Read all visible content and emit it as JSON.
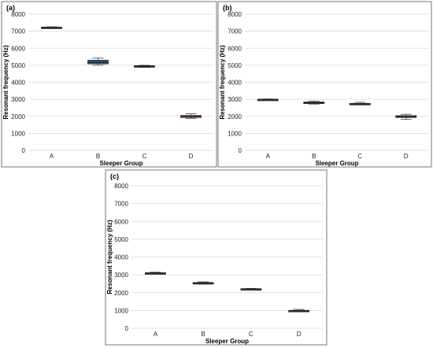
{
  "chart_data": [
    {
      "type": "box",
      "panel_label": "(a)",
      "xlabel": "Sleeper Group",
      "ylabel": "Resonant frequency (Hz)",
      "ylim": [
        0,
        8000
      ],
      "yticks": [
        "0",
        "1000",
        "2000",
        "3000",
        "4000",
        "5000",
        "6000",
        "7000",
        "8000"
      ],
      "grid": true,
      "categories": [
        "A",
        "B",
        "C",
        "D"
      ],
      "boxes": [
        {
          "category": "A",
          "min": 7170,
          "q1": 7190,
          "median": 7215,
          "q3": 7240,
          "max": 7260,
          "color": "#4a4a4a"
        },
        {
          "category": "B",
          "min": 5000,
          "q1": 5080,
          "median": 5180,
          "q3": 5300,
          "max": 5420,
          "color": "#2f5f87"
        },
        {
          "category": "C",
          "min": 4870,
          "q1": 4900,
          "median": 4940,
          "q3": 4975,
          "max": 5000,
          "color": "#4a4a4a"
        },
        {
          "category": "D",
          "min": 1880,
          "q1": 1930,
          "median": 2000,
          "q3": 2050,
          "max": 2150,
          "color": "#9b4a48"
        }
      ]
    },
    {
      "type": "box",
      "panel_label": "(b)",
      "xlabel": "Sleeper Group",
      "ylabel": "Resonant frequency (Hz)",
      "ylim": [
        0,
        8000
      ],
      "yticks": [
        "0",
        "1000",
        "2000",
        "3000",
        "4000",
        "5000",
        "6000",
        "7000",
        "8000"
      ],
      "grid": true,
      "categories": [
        "A",
        "B",
        "C",
        "D"
      ],
      "boxes": [
        {
          "category": "A",
          "min": 2960,
          "q1": 2975,
          "median": 2990,
          "q3": 3005,
          "max": 3020,
          "color": "#4a4a4a"
        },
        {
          "category": "B",
          "min": 2720,
          "q1": 2760,
          "median": 2800,
          "q3": 2840,
          "max": 2900,
          "color": "#4a4a4a"
        },
        {
          "category": "C",
          "min": 2680,
          "q1": 2700,
          "median": 2730,
          "q3": 2760,
          "max": 2820,
          "color": "#4a4a4a"
        },
        {
          "category": "D",
          "min": 1820,
          "q1": 1930,
          "median": 1990,
          "q3": 2040,
          "max": 2120,
          "color": "#4a4a4a"
        }
      ]
    },
    {
      "type": "box",
      "panel_label": "(c)",
      "xlabel": "Sleeper Group",
      "ylabel": "Resonant frequency (Hz)",
      "ylim": [
        0,
        8000
      ],
      "yticks": [
        "0",
        "1000",
        "2000",
        "3000",
        "4000",
        "5000",
        "6000",
        "7000",
        "8000"
      ],
      "grid": true,
      "categories": [
        "A",
        "B",
        "C",
        "D"
      ],
      "boxes": [
        {
          "category": "A",
          "min": 3040,
          "q1": 3080,
          "median": 3100,
          "q3": 3120,
          "max": 3150,
          "color": "#4a4a4a"
        },
        {
          "category": "B",
          "min": 2480,
          "q1": 2510,
          "median": 2540,
          "q3": 2570,
          "max": 2610,
          "color": "#4a4a4a"
        },
        {
          "category": "C",
          "min": 2180,
          "q1": 2195,
          "median": 2210,
          "q3": 2225,
          "max": 2240,
          "color": "#4a4a4a"
        },
        {
          "category": "D",
          "min": 930,
          "q1": 950,
          "median": 980,
          "q3": 1010,
          "max": 1060,
          "color": "#4a4a4a"
        }
      ]
    }
  ]
}
